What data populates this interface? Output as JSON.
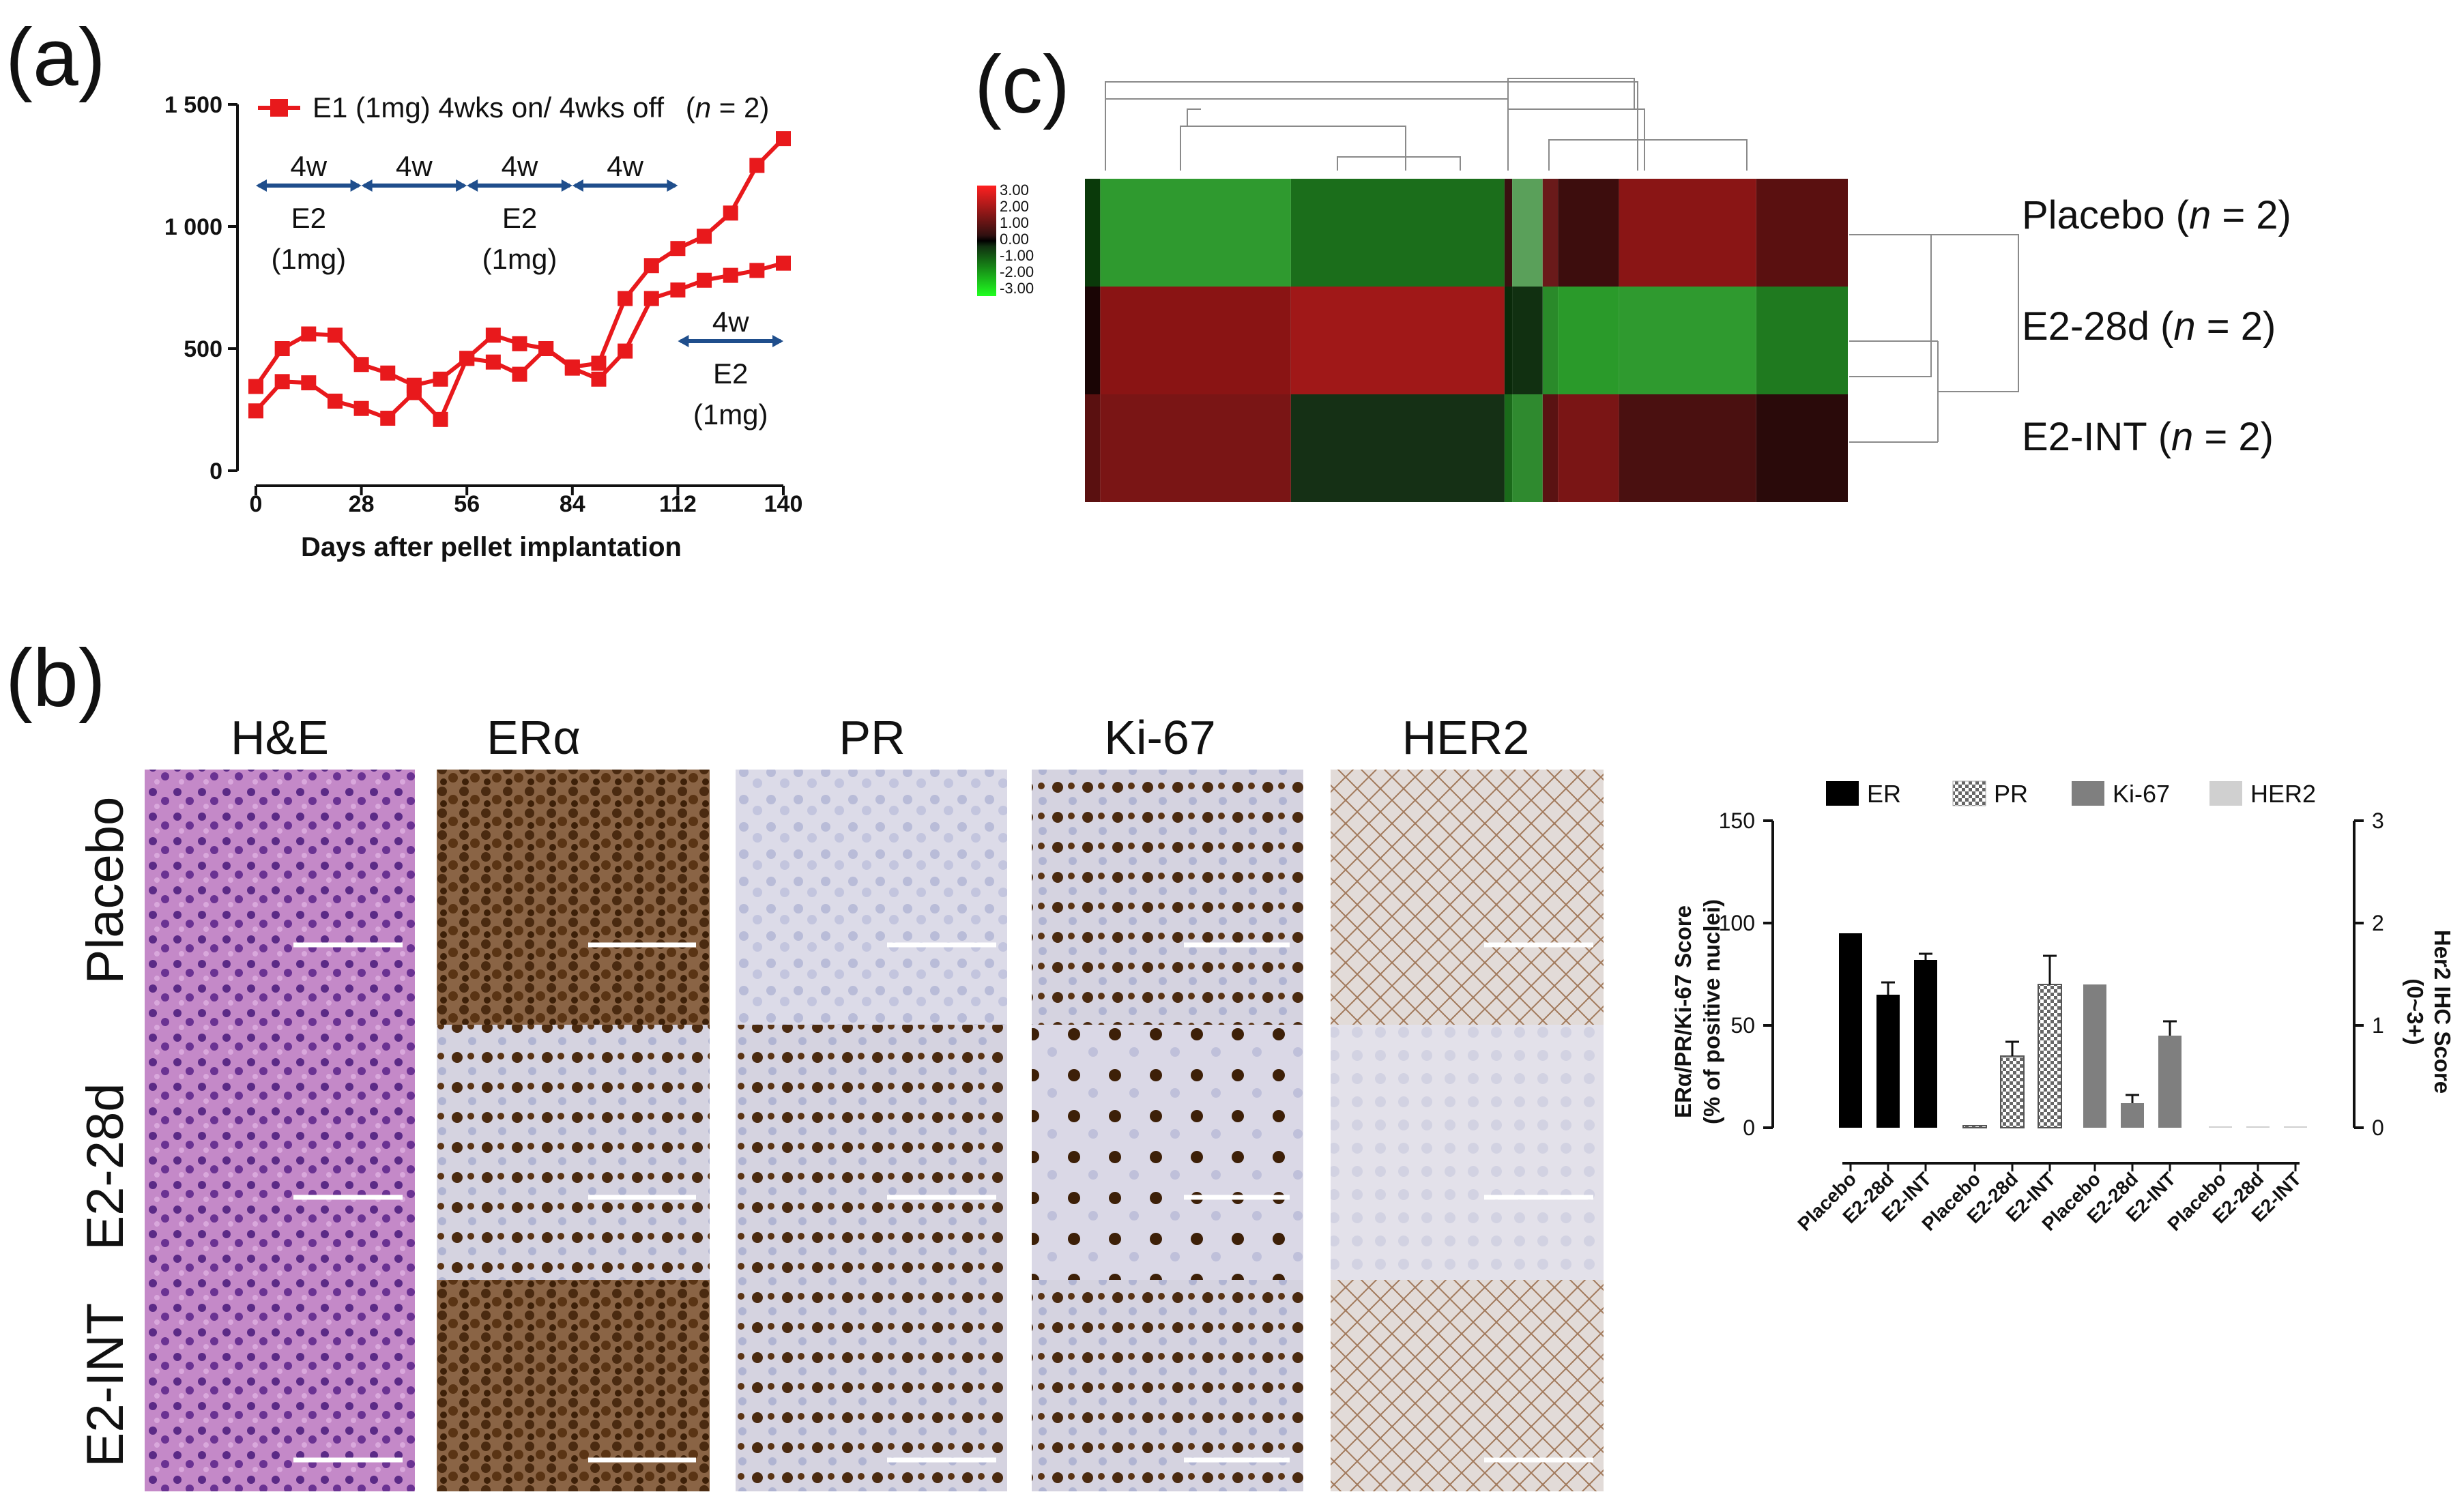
{
  "panels": {
    "a": "(a)",
    "b": "(b)",
    "c": "(c)"
  },
  "panel_a": {
    "legend_label": "E1 (1mg) 4wks on/ 4wks off",
    "legend_n_open": "(",
    "legend_n_var": "n",
    "legend_n_close": " = 2)",
    "annotations": [
      {
        "span": "4w",
        "drug": "E2",
        "dose": "(1mg)"
      },
      {
        "span": "4w"
      },
      {
        "span": "4w",
        "drug": "E2",
        "dose": "(1mg)"
      },
      {
        "span": "4w"
      },
      {
        "span": "4w",
        "drug": "E2",
        "dose": "(1mg)"
      }
    ]
  },
  "panel_b": {
    "stains": [
      "H&E",
      "ERα",
      "PR",
      "Ki-67",
      "HER2"
    ],
    "groups": [
      "Placebo",
      "E2-28d",
      "E2-INT"
    ]
  },
  "panel_c": {
    "scale_labels": [
      "3.00",
      "2.00",
      "1.00",
      "0.00",
      "-1.00",
      "-2.00",
      "-3.00"
    ],
    "rows": [
      {
        "name": "Placebo",
        "n_open": "(",
        "n": "n",
        "n_close": " = 2)"
      },
      {
        "name": "E2-28d",
        "n_open": "(",
        "n": "n",
        "n_close": " = 2)"
      },
      {
        "name": "E2-INT",
        "n_open": "(",
        "n": "n",
        "n_close": " = 2)"
      }
    ]
  },
  "chart_data": [
    {
      "type": "line",
      "title": "",
      "xlabel": "Days after pellet implantation",
      "ylabel": "",
      "xlim": [
        0,
        140
      ],
      "ylim": [
        0,
        1500
      ],
      "xticks": [
        0,
        28,
        56,
        84,
        112,
        140
      ],
      "yticks": [
        0,
        500,
        1000,
        1500
      ],
      "ytick_labels": [
        "0",
        "500",
        "1 000",
        "1 500"
      ],
      "color": "#e8191c",
      "series": [
        {
          "name": "E1 (1mg) 4wks on/ 4wks off (n = 2) mouse 1",
          "x": [
            0,
            7,
            14,
            21,
            28,
            35,
            42,
            49,
            56,
            63,
            70,
            77,
            84,
            91,
            98,
            105,
            112,
            119,
            126,
            133,
            140
          ],
          "y": [
            345,
            500,
            560,
            555,
            435,
            400,
            350,
            375,
            460,
            555,
            520,
            500,
            425,
            440,
            705,
            840,
            910,
            960,
            1055,
            1250,
            1360
          ]
        },
        {
          "name": "E1 (1mg) 4wks on/ 4wks off (n = 2) mouse 2",
          "x": [
            0,
            7,
            14,
            21,
            28,
            35,
            42,
            49,
            56,
            63,
            70,
            77,
            84,
            91,
            98,
            105,
            112,
            119,
            126,
            133,
            140
          ],
          "y": [
            245,
            365,
            360,
            285,
            255,
            215,
            320,
            210,
            460,
            445,
            395,
            500,
            420,
            375,
            490,
            705,
            740,
            780,
            800,
            820,
            850
          ]
        }
      ],
      "phases": [
        {
          "label": "4w",
          "start": 0,
          "end": 28
        },
        {
          "label": "4w",
          "start": 28,
          "end": 56
        },
        {
          "label": "4w",
          "start": 56,
          "end": 84
        },
        {
          "label": "4w",
          "start": 84,
          "end": 112
        },
        {
          "label": "4w",
          "start": 112,
          "end": 140
        }
      ]
    },
    {
      "type": "bar",
      "title": "",
      "ylabel": "ERα/PR/Ki-67 Score",
      "ylabel2": "(% of positive nuclei)",
      "y2label": "Her2 IHC Score",
      "y2label2": "(0~3+)",
      "ylim": [
        0,
        150
      ],
      "yticks": [
        0,
        50,
        100,
        150
      ],
      "y2lim": [
        0,
        3
      ],
      "y2ticks": [
        0,
        1,
        2,
        3
      ],
      "categories": [
        "Placebo",
        "E2-28d",
        "E2-INT"
      ],
      "legend_location": "top",
      "series": [
        {
          "name": "ER",
          "values": [
            95,
            65,
            82
          ],
          "errors": [
            0,
            6,
            3
          ],
          "axis": "left"
        },
        {
          "name": "PR",
          "values": [
            1,
            35,
            70
          ],
          "errors": [
            0,
            7,
            14
          ],
          "axis": "left"
        },
        {
          "name": "Ki-67",
          "values": [
            70,
            12,
            45
          ],
          "errors": [
            0,
            4,
            7
          ],
          "axis": "left"
        },
        {
          "name": "HER2",
          "values": [
            0,
            0,
            0
          ],
          "errors": [
            0,
            0,
            0
          ],
          "axis": "right"
        }
      ]
    }
  ],
  "colors": {
    "line": "#e8191c",
    "arrow": "#1f4e8c",
    "er": "#000000",
    "ki67": "#7f7f7f",
    "her2": "#d0d0d0"
  }
}
